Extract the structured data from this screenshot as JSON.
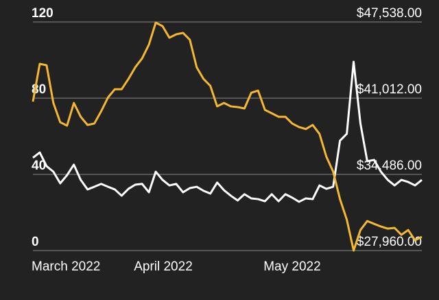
{
  "chart_data": {
    "type": "line",
    "categories": [
      "March 2022",
      null,
      null,
      null,
      null,
      null,
      null,
      null,
      null,
      null,
      null,
      null,
      null,
      null,
      null,
      "April 2022",
      null,
      null,
      null,
      null,
      null,
      null,
      null,
      null,
      null,
      null,
      null,
      null,
      null,
      null,
      null,
      null,
      null,
      null,
      "May 2022",
      null,
      null,
      null,
      null,
      null,
      null,
      null,
      null,
      null,
      null,
      null,
      null,
      null,
      null,
      null,
      null,
      null,
      null,
      null,
      null,
      null,
      null,
      null
    ],
    "ylim": [
      0,
      120
    ],
    "yticks": [
      0,
      40,
      80,
      120
    ],
    "y2lim": [
      27960,
      47538
    ],
    "y2ticks": [
      {
        "value": 27960,
        "label": "$27,960.00"
      },
      {
        "value": 34486,
        "label": "$34,486.00"
      },
      {
        "value": 41012,
        "label": "$41,012.00"
      },
      {
        "value": 47538,
        "label": "$47,538.00"
      }
    ],
    "grid": true,
    "series": [
      {
        "color": "#ffffff",
        "axis": "y",
        "values": [
          48.7,
          51.5,
          44.3,
          41.4,
          35.3,
          39.6,
          45.1,
          37.1,
          32.1,
          33.5,
          35.0,
          33.5,
          32.1,
          28.8,
          32.4,
          34.6,
          35.0,
          30.6,
          41.4,
          37.1,
          34.2,
          35.0,
          30.6,
          32.8,
          33.5,
          31.4,
          29.9,
          35.7,
          31.7,
          28.8,
          26.3,
          29.6,
          27.4,
          27.0,
          25.9,
          29.6,
          25.9,
          29.6,
          27.8,
          25.6,
          27.4,
          27.0,
          34.2,
          32.4,
          33.5,
          57.7,
          61.3,
          99.1,
          66.7,
          46.9,
          47.6,
          41.4,
          37.1,
          34.2,
          37.1,
          36.0,
          34.2,
          37.1
        ]
      },
      {
        "color": "#f5b82e",
        "axis": "y2",
        "values": [
          40720,
          43950,
          43830,
          40600,
          38950,
          38660,
          40600,
          39420,
          38720,
          38840,
          39890,
          41070,
          41780,
          41780,
          42660,
          43660,
          44420,
          45600,
          47480,
          47180,
          46190,
          46480,
          46600,
          46010,
          43660,
          42660,
          42070,
          40310,
          40600,
          40310,
          40250,
          40130,
          41480,
          41660,
          40010,
          39720,
          39420,
          39420,
          38840,
          38540,
          38370,
          38720,
          37950,
          36010,
          34720,
          32370,
          30610,
          27960,
          29720,
          30490,
          30250,
          30020,
          29840,
          29900,
          29310,
          29720,
          28840,
          29140
        ]
      }
    ]
  }
}
